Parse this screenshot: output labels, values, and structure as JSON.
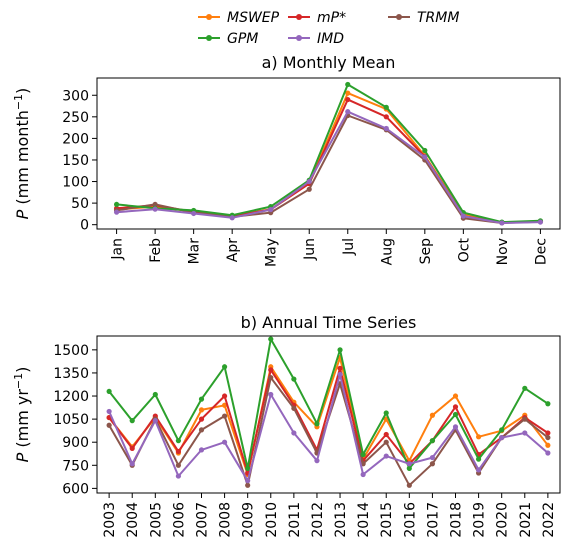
{
  "legend": {
    "entries": [
      {
        "name": "MSWEP",
        "color": "#ff7f0e"
      },
      {
        "name": "mP*",
        "color": "#d62728"
      },
      {
        "name": "TRMM",
        "color": "#8c564b"
      },
      {
        "name": "GPM",
        "color": "#2ca02c"
      },
      {
        "name": "IMD",
        "color": "#9467bd"
      }
    ],
    "placement": "top-center",
    "columns": 3
  },
  "chart_data": [
    {
      "type": "line",
      "title": "a) Monthly Mean",
      "xlabel": "",
      "ylabel": "P (mm month⁻¹)",
      "ylabel_parts": {
        "symbol": "P",
        "rest": " (mm month",
        "sup": "−1",
        "close": ")"
      },
      "ylim": [
        -10,
        340
      ],
      "yticks": [
        0,
        50,
        100,
        150,
        200,
        250,
        300
      ],
      "grid": false,
      "categories": [
        "Jan",
        "Feb",
        "Mar",
        "Apr",
        "May",
        "Jun",
        "Jul",
        "Aug",
        "Sep",
        "Oct",
        "Nov",
        "Dec"
      ],
      "series": [
        {
          "name": "MSWEP",
          "color": "#ff7f0e",
          "values": [
            35,
            42,
            30,
            20,
            36,
            96,
            305,
            268,
            160,
            24,
            5,
            8
          ]
        },
        {
          "name": "mP*",
          "color": "#d62728",
          "values": [
            38,
            45,
            30,
            20,
            35,
            95,
            290,
            250,
            158,
            20,
            5,
            8
          ]
        },
        {
          "name": "TRMM",
          "color": "#8c564b",
          "values": [
            33,
            47,
            28,
            18,
            28,
            82,
            253,
            220,
            150,
            15,
            4,
            7
          ]
        },
        {
          "name": "GPM",
          "color": "#2ca02c",
          "values": [
            47,
            38,
            33,
            22,
            42,
            103,
            325,
            272,
            172,
            28,
            6,
            9
          ]
        },
        {
          "name": "IMD",
          "color": "#9467bd",
          "values": [
            29,
            36,
            26,
            16,
            35,
            100,
            262,
            223,
            157,
            20,
            4,
            6
          ]
        }
      ]
    },
    {
      "type": "line",
      "title": "b) Annual Time Series",
      "xlabel": "",
      "ylabel": "P (mm yr⁻¹)",
      "ylabel_parts": {
        "symbol": "P",
        "rest": " (mm yr",
        "sup": "−1",
        "close": ")"
      },
      "ylim": [
        570,
        1590
      ],
      "yticks": [
        600,
        750,
        900,
        1050,
        1200,
        1350,
        1500
      ],
      "grid": false,
      "categories": [
        "2003",
        "2004",
        "2005",
        "2006",
        "2007",
        "2008",
        "2009",
        "2010",
        "2011",
        "2012",
        "2013",
        "2014",
        "2015",
        "2016",
        "2017",
        "2018",
        "2019",
        "2020",
        "2021",
        "2022"
      ],
      "series": [
        {
          "name": "MSWEP",
          "color": "#ff7f0e",
          "values": [
            1060,
            870,
            1060,
            830,
            1110,
            1140,
            690,
            1390,
            1160,
            1000,
            1450,
            790,
            1050,
            780,
            1075,
            1200,
            935,
            975,
            1075,
            880
          ]
        },
        {
          "name": "mP*",
          "color": "#d62728",
          "values": [
            1060,
            860,
            1070,
            840,
            1050,
            1200,
            700,
            1370,
            1140,
            850,
            1380,
            780,
            950,
            760,
            910,
            1130,
            820,
            930,
            1060,
            960
          ]
        },
        {
          "name": "TRMM",
          "color": "#8c564b",
          "values": [
            1010,
            750,
            1050,
            750,
            980,
            1070,
            620,
            1320,
            1120,
            830,
            1280,
            760,
            900,
            620,
            760,
            980,
            700,
            930,
            1050,
            930
          ]
        },
        {
          "name": "GPM",
          "color": "#2ca02c",
          "values": [
            1230,
            1040,
            1210,
            910,
            1180,
            1390,
            730,
            1570,
            1310,
            1020,
            1500,
            820,
            1090,
            730,
            910,
            1080,
            790,
            980,
            1250,
            1150
          ]
        },
        {
          "name": "IMD",
          "color": "#9467bd",
          "values": [
            1100,
            760,
            1040,
            680,
            850,
            900,
            650,
            1210,
            960,
            780,
            1340,
            690,
            810,
            760,
            800,
            1000,
            720,
            930,
            960,
            830
          ]
        }
      ]
    }
  ]
}
